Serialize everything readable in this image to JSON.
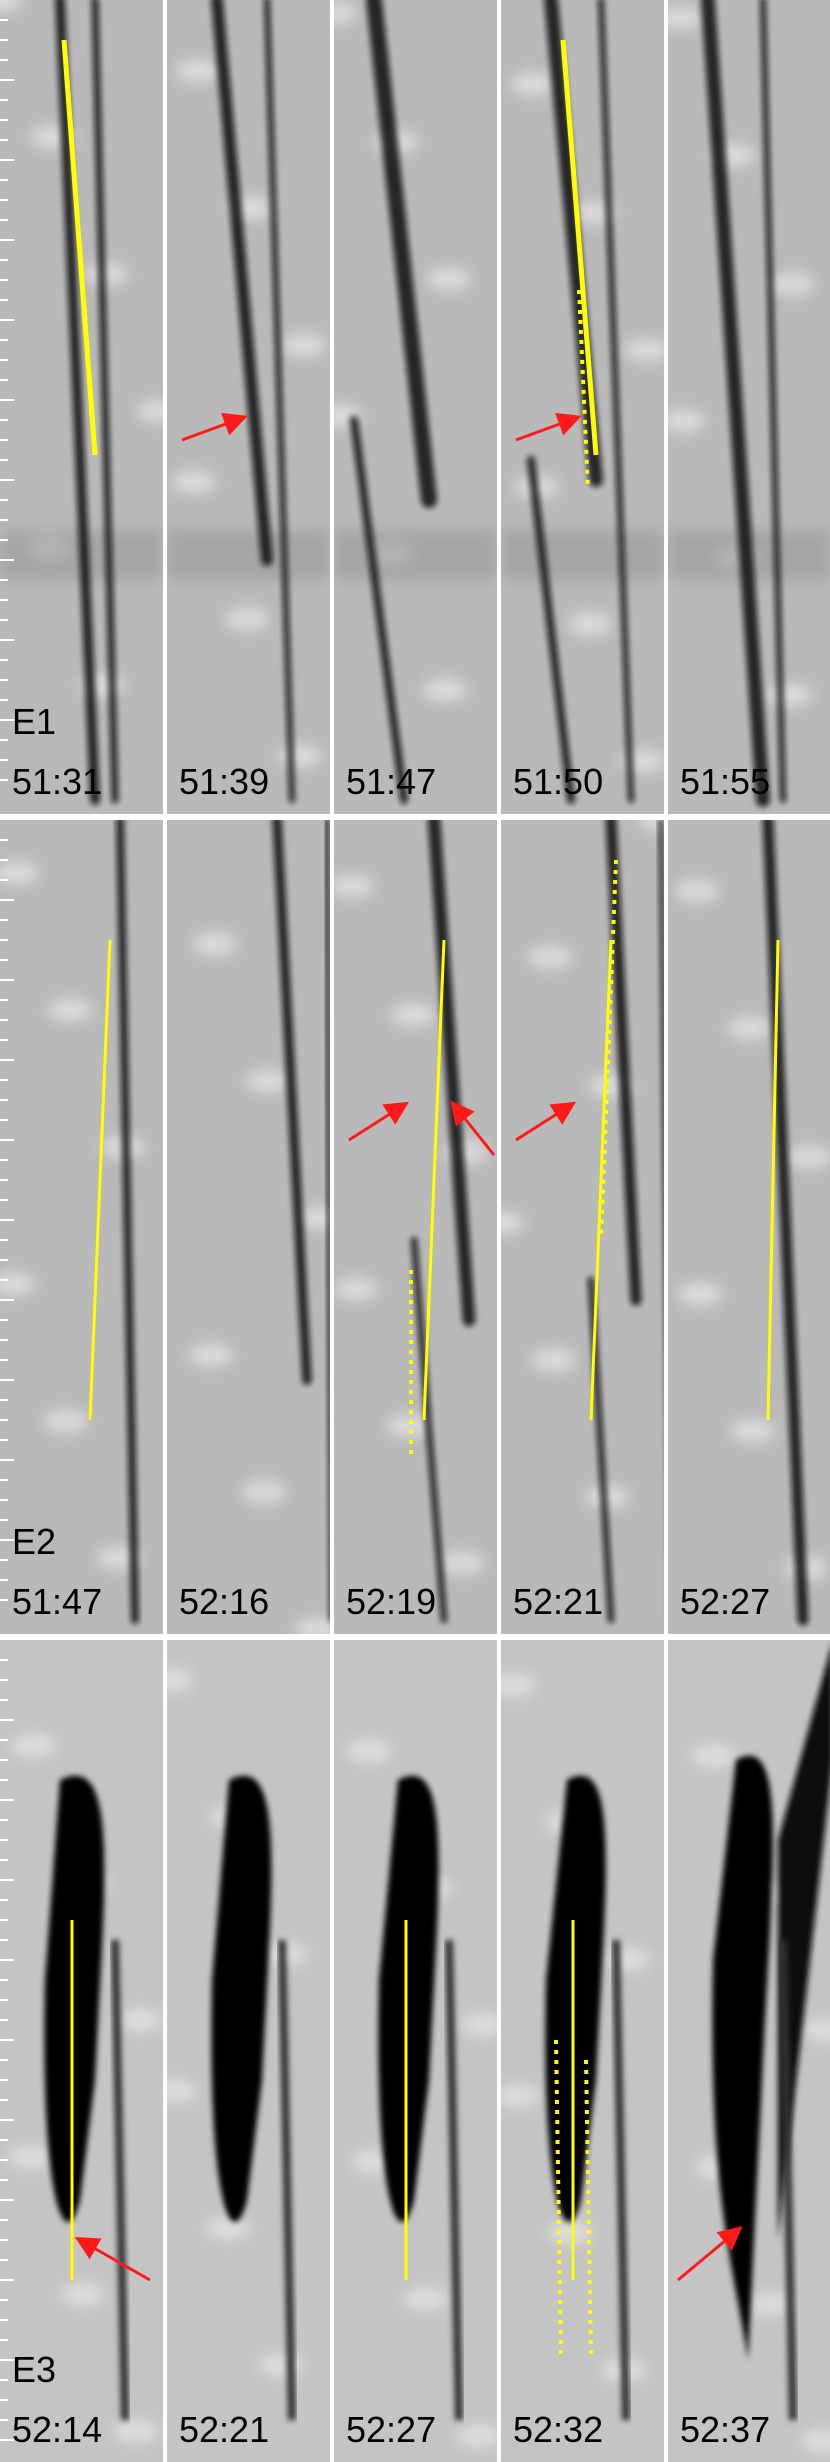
{
  "panels": [
    {
      "label": "E1",
      "times": [
        "51:31",
        "51:39",
        "51:47",
        "51:50",
        "51:55"
      ]
    },
    {
      "label": "E2",
      "times": [
        "51:47",
        "52:16",
        "52:19",
        "52:21",
        "52:27"
      ]
    },
    {
      "label": "E3",
      "times": [
        "52:14",
        "52:21",
        "52:27",
        "52:32",
        "52:37"
      ]
    }
  ]
}
